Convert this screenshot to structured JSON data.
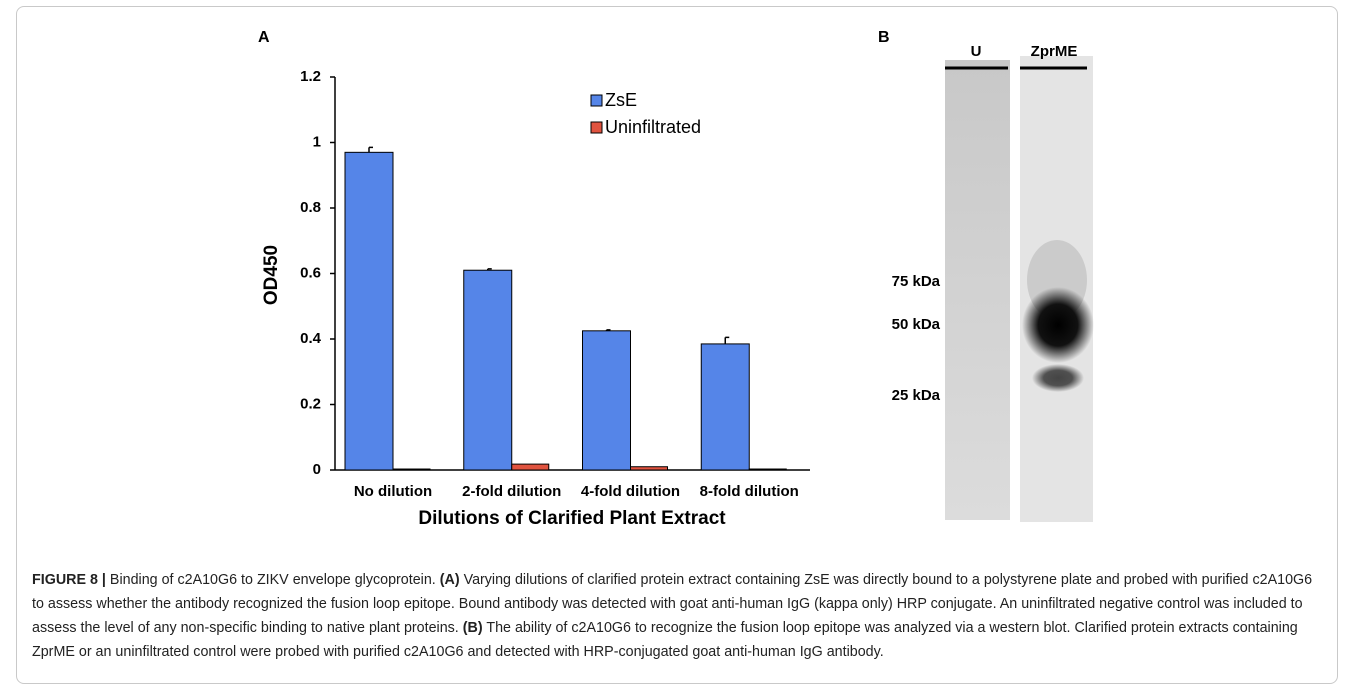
{
  "panel_a": {
    "label": "A"
  },
  "chart_data": {
    "type": "bar",
    "ylabel": "OD450",
    "xlabel": "Dilutions of Clarified Plant Extract",
    "categories": [
      "No dilution",
      "2-fold dilution",
      "4-fold dilution",
      "8-fold dilution"
    ],
    "series": [
      {
        "name": "ZsE",
        "color": "#5585e8",
        "values": [
          0.97,
          0.61,
          0.425,
          0.385
        ],
        "errors": [
          0.015,
          0.004,
          0.003,
          0.02
        ]
      },
      {
        "name": "Uninfiltrated",
        "color": "#e0533f",
        "values": [
          0.003,
          0.018,
          0.01,
          0.003
        ],
        "errors": [
          0,
          0,
          0,
          0
        ]
      }
    ],
    "ylim": [
      0,
      1.2
    ],
    "yticks": [
      0,
      0.2,
      0.4,
      0.6,
      0.8,
      1,
      1.2
    ],
    "grid": false,
    "legend": "upper right"
  },
  "panel_b": {
    "label": "B",
    "lanes": [
      "U",
      "ZprME"
    ],
    "markers": [
      "75 kDa",
      "50 kDa",
      "25 kDa"
    ]
  },
  "caption": {
    "label": "FIGURE 8 |",
    "title": "Binding of c2A10G6 to ZIKV envelope glycoprotein.",
    "parts": [
      {
        "tag": "(A)",
        "text": "Varying dilutions of clarified protein extract containing ZsE was directly bound to a polystyrene plate and probed with purified c2A10G6 to assess whether the antibody recognized the fusion loop epitope. Bound antibody was detected with goat anti-human IgG (kappa only) HRP conjugate. An uninfiltrated negative control was included to assess the level of any non-specific binding to native plant proteins."
      },
      {
        "tag": "(B)",
        "text": "The ability of c2A10G6 to recognize the fusion loop epitope was analyzed via a western blot. Clarified protein extracts containing ZprME or an uninfiltrated control were probed with purified c2A10G6 and detected with HRP-conjugated goat anti-human IgG antibody."
      }
    ]
  }
}
